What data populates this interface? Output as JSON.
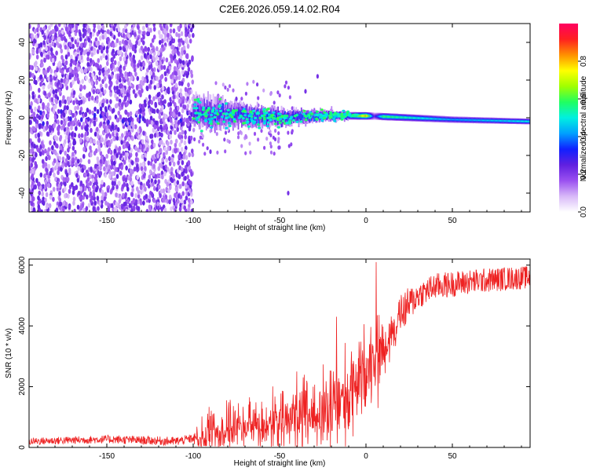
{
  "chart_data": [
    {
      "type": "heatmap",
      "title": "C2E6.2026.059.14.02.R04",
      "xlabel": "Height of straight line (km)",
      "ylabel": "Frequency (Hz)",
      "xlim": [
        -195,
        95
      ],
      "ylim": [
        -50,
        50
      ],
      "xticks": [
        -150,
        -100,
        -50,
        0,
        50
      ],
      "yticks": [
        -40,
        -20,
        0,
        20,
        40
      ],
      "colorbar": {
        "label": "Normalized spectral amplitude",
        "range": [
          0,
          1
        ],
        "ticks": [
          0.0,
          0.2,
          0.4,
          0.6,
          0.8
        ],
        "colors": [
          "#ffffff",
          "#d8b8f8",
          "#9a50f0",
          "#6020e0",
          "#1020ff",
          "#00a0ff",
          "#00f0e0",
          "#20ff60",
          "#a0ff00",
          "#ffff00",
          "#ff9000",
          "#ff2020",
          "#ff0060"
        ]
      },
      "features": {
        "noise_region_x": [
          -195,
          -100
        ],
        "noise_amplitude": 0.25,
        "signal_centerline_hz": [
          [
            -100,
            3
          ],
          [
            -50,
            0
          ],
          [
            -20,
            1
          ],
          [
            0,
            1
          ],
          [
            50,
            -1
          ],
          [
            95,
            -2
          ]
        ],
        "signal_halfwidth_hz": [
          [
            -100,
            8
          ],
          [
            -50,
            4
          ],
          [
            -10,
            2
          ],
          [
            95,
            1.5
          ]
        ],
        "signal_amplitude": [
          [
            -100,
            0.35
          ],
          [
            -60,
            0.45
          ],
          [
            -30,
            0.5
          ],
          [
            -10,
            0.55
          ],
          [
            0,
            0.95
          ],
          [
            5,
            0.3
          ],
          [
            10,
            0.7
          ],
          [
            50,
            0.5
          ],
          [
            95,
            0.6
          ]
        ]
      }
    },
    {
      "type": "line",
      "xlabel": "Height of straight line (km)",
      "ylabel": "SNR (10 * v/v)",
      "xlim": [
        -195,
        95
      ],
      "ylim": [
        0,
        6200
      ],
      "xticks": [
        -150,
        -100,
        -50,
        0,
        50
      ],
      "yticks": [
        0,
        2000,
        4000,
        6000
      ],
      "series": [
        {
          "name": "SNR",
          "color": "#ee2222",
          "trend": [
            [
              -195,
              200
            ],
            [
              -150,
              270
            ],
            [
              -110,
              200
            ],
            [
              -100,
              300
            ],
            [
              -90,
              550
            ],
            [
              -80,
              650
            ],
            [
              -60,
              750
            ],
            [
              -40,
              950
            ],
            [
              -25,
              1150
            ],
            [
              -15,
              1450
            ],
            [
              -5,
              2000
            ],
            [
              0,
              2700
            ],
            [
              5,
              3100
            ],
            [
              10,
              3300
            ],
            [
              15,
              3800
            ],
            [
              20,
              4400
            ],
            [
              30,
              5000
            ],
            [
              40,
              5300
            ],
            [
              60,
              5450
            ],
            [
              80,
              5550
            ],
            [
              95,
              5600
            ]
          ],
          "spread": [
            [
              -195,
              120
            ],
            [
              -100,
              150
            ],
            [
              -95,
              900
            ],
            [
              -60,
              1100
            ],
            [
              -30,
              1700
            ],
            [
              -15,
              2200
            ],
            [
              0,
              1800
            ],
            [
              10,
              1300
            ],
            [
              20,
              700
            ],
            [
              30,
              450
            ],
            [
              95,
              380
            ]
          ],
          "spikes": [
            [
              6,
              6100
            ],
            [
              7,
              1300
            ],
            [
              -17,
              4300
            ],
            [
              -40,
              2500
            ]
          ]
        }
      ]
    }
  ]
}
